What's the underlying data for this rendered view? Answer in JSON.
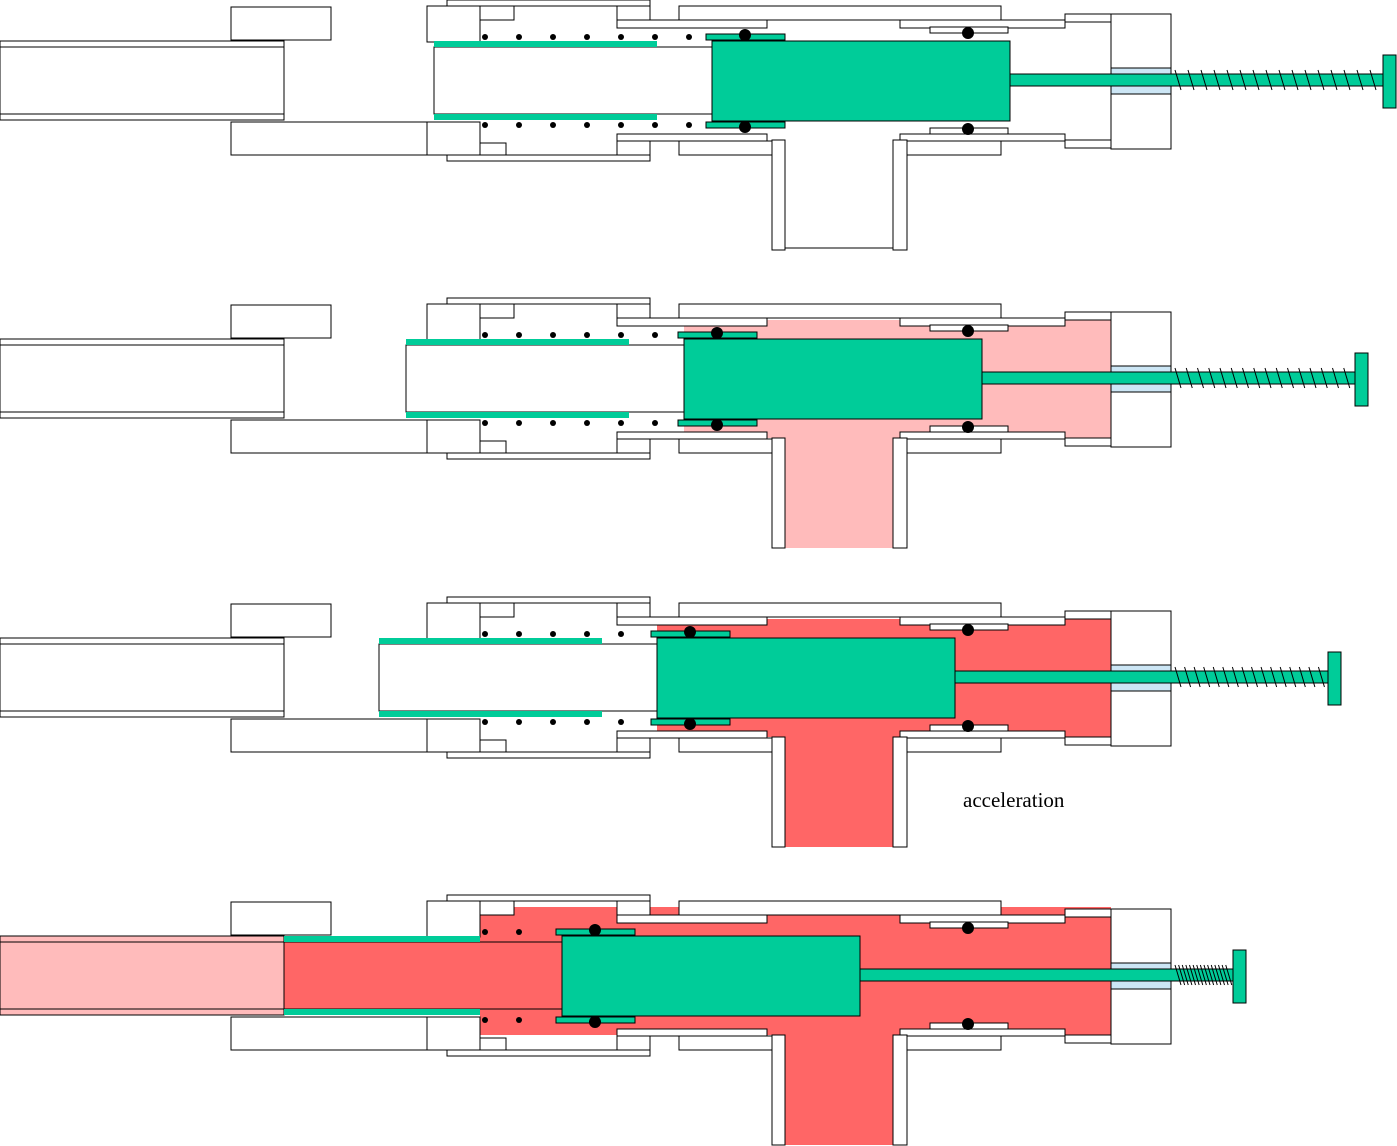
{
  "annotation": "acceleration"
}
